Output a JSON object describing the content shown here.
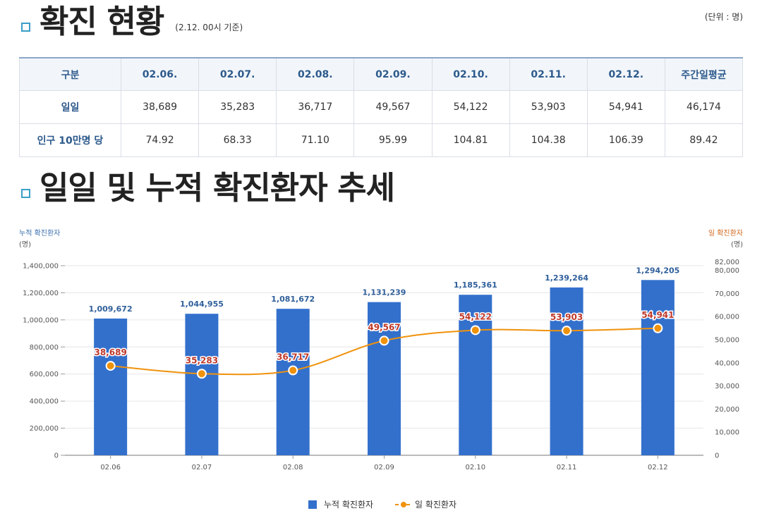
{
  "section1": {
    "title": "확진 현황",
    "subtitle": "(2.12. 00시 기준)",
    "unit": "(단위 : 명)"
  },
  "table": {
    "headers": [
      "구분",
      "02.06.",
      "02.07.",
      "02.08.",
      "02.09.",
      "02.10.",
      "02.11.",
      "02.12.",
      "주간일평균"
    ],
    "rows": [
      {
        "label": "일일",
        "values": [
          "38,689",
          "35,283",
          "36,717",
          "49,567",
          "54,122",
          "53,903",
          "54,941",
          "46,174"
        ]
      },
      {
        "label": "인구 10만명 당",
        "values": [
          "74.92",
          "68.33",
          "71.10",
          "95.99",
          "104.81",
          "104.38",
          "106.39",
          "89.42"
        ]
      }
    ]
  },
  "section2": {
    "title": "일일 및 누적 확진환자 추세"
  },
  "chart_data": {
    "type": "bar",
    "categories": [
      "02.06",
      "02.07",
      "02.08",
      "02.09",
      "02.10",
      "02.11",
      "02.12"
    ],
    "series": [
      {
        "name": "누적 확진환자",
        "type": "bar",
        "axis": "left",
        "color": "#3370cc",
        "values": [
          1009672,
          1044955,
          1081672,
          1131239,
          1185361,
          1239264,
          1294205
        ]
      },
      {
        "name": "일 확진환자",
        "type": "line",
        "axis": "right",
        "color": "#f0920c",
        "values": [
          38689,
          35283,
          36717,
          49567,
          54122,
          53903,
          54941
        ]
      }
    ],
    "y_left": {
      "label": "누적 확진환자",
      "unit": "(명)",
      "range": [
        0,
        1400000
      ],
      "ticks": [
        "0",
        "200,000",
        "400,000",
        "600,000",
        "800,000",
        "1,000,000",
        "1,200,000",
        "1,400,000"
      ]
    },
    "y_right": {
      "label": "일 확진환자",
      "unit": "(명)",
      "range": [
        0,
        82000
      ],
      "ticks": [
        "0",
        "10,000",
        "20,000",
        "30,000",
        "40,000",
        "50,000",
        "60,000",
        "70,000",
        "80,000",
        "82,000"
      ]
    },
    "grid": true,
    "legend": [
      "누적 확진환자",
      "일 확진환자"
    ],
    "legend_position": "bottom"
  }
}
